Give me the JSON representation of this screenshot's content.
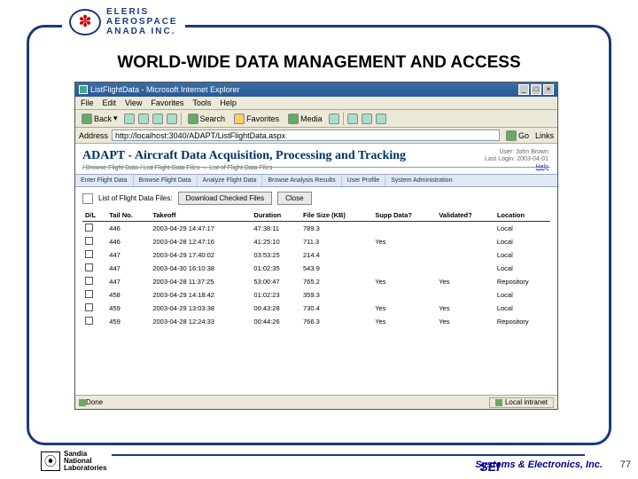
{
  "logo": {
    "line1": "ELERIS",
    "line2": "AEROSPACE",
    "line3": "ANADA INC."
  },
  "slide_title": "WORLD-WIDE DATA MANAGEMENT AND ACCESS",
  "browser": {
    "title": "ListFlightData - Microsoft Internet Explorer",
    "menu": [
      "File",
      "Edit",
      "View",
      "Favorites",
      "Tools",
      "Help"
    ],
    "toolbar": {
      "back": "Back",
      "search": "Search",
      "favorites": "Favorites",
      "media": "Media"
    },
    "address_label": "Address",
    "address": "http://localhost:3040/ADAPT/ListFlightData.aspx",
    "go": "Go",
    "links": "Links",
    "status_left": "Done",
    "status_right": "Local intranet"
  },
  "app": {
    "title": "ADAPT - Aircraft Data Acquisition, Processing and Tracking",
    "user_line1": "User: John Brown",
    "user_line2": "Last Login: 2003-04-01",
    "breadcrumb": "/ Browse Flight Data / List Flight Data Files → List of Flight Data Files",
    "tabs": [
      "Enter Flight Data",
      "Browse Flight Data",
      "Analyze Flight Data",
      "Browse Analysis Results",
      "User Profile",
      "System Administration"
    ],
    "section_label": "List of Flight Data Files:",
    "btn_download": "Download Checked Files",
    "btn_close": "Close",
    "columns": [
      "D/L",
      "Tail No.",
      "Takeoff",
      "Duration",
      "File Size (KB)",
      "Supp Data?",
      "Validated?",
      "Location"
    ],
    "rows": [
      [
        "",
        "446",
        "2003-04-29 14:47:17",
        "47:38:11",
        "789.3",
        "",
        "",
        "Local"
      ],
      [
        "",
        "446",
        "2003-04-28 12:47:16",
        "41:25:10",
        "711.3",
        "Yes",
        "",
        "Local"
      ],
      [
        "",
        "447",
        "2003-04-29 17:40:02",
        "03:53:25",
        "214.4",
        "",
        "",
        "Local"
      ],
      [
        "",
        "447",
        "2003-04-30 16:10:38",
        "01:02:35",
        "543.9",
        "",
        "",
        "Local"
      ],
      [
        "",
        "447",
        "2003-04-28 11:37:25",
        "53:00:47",
        "765.2",
        "Yes",
        "Yes",
        "Repository"
      ],
      [
        "",
        "458",
        "2003-04-29 14:18:42",
        "01:02:23",
        "359.3",
        "",
        "",
        "Local"
      ],
      [
        "",
        "459",
        "2003-04-29 13:03:38",
        "00:43:28",
        "730.4",
        "Yes",
        "Yes",
        "Local"
      ],
      [
        "",
        "459",
        "2003-04-28 12:24:33",
        "00:44:26",
        "766.3",
        "Yes",
        "Yes",
        "Repository"
      ]
    ]
  },
  "footer": {
    "sandia1": "Sandia",
    "sandia2": "National",
    "sandia3": "Laboratories",
    "sei": "SEI",
    "sei_full": "Systems & Electronics, Inc.",
    "page": "77"
  },
  "help": "Help"
}
